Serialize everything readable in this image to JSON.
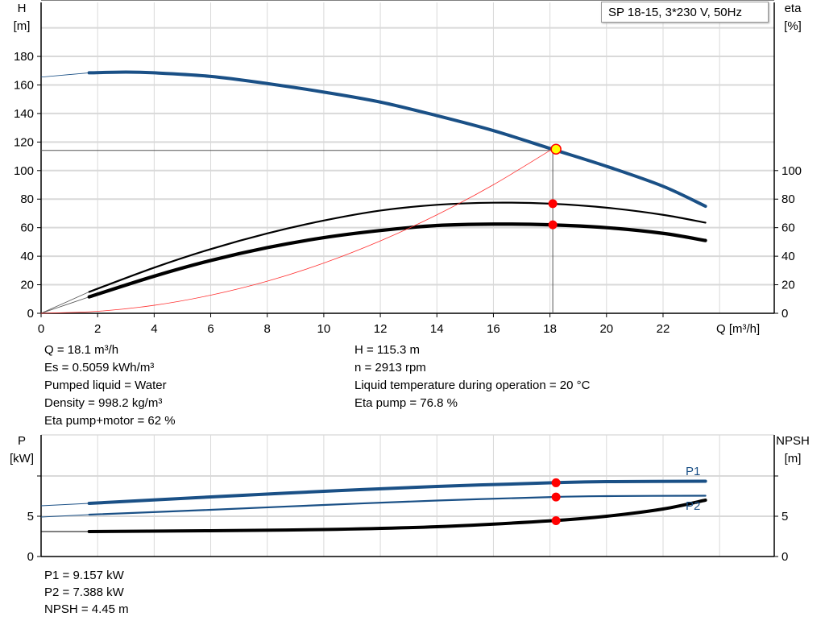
{
  "title": "SP 18-15, 3*230 V, 50Hz",
  "colors": {
    "head": "#1a5086",
    "power": "#1a5086",
    "efficiency": "#000000",
    "system": "#ff3030",
    "marker": "#ff0000",
    "duty_marker": "#ffff00",
    "grid": "#d9d9d9"
  },
  "chart_data": [
    {
      "type": "line",
      "xlabel": "Q [m³/h]",
      "ylabel_left": [
        "H",
        "[m]"
      ],
      "ylabel_right": [
        "eta",
        "[%]"
      ],
      "xlim": [
        0,
        25.5
      ],
      "ylim_left": [
        0,
        200
      ],
      "ylim_right": [
        0,
        200
      ],
      "x_ticks": [
        "0",
        "2",
        "4",
        "6",
        "8",
        "10",
        "12",
        "14",
        "16",
        "18",
        "20",
        "22"
      ],
      "y_ticks_left": [
        "0",
        "20",
        "40",
        "60",
        "80",
        "100",
        "120",
        "140",
        "160",
        "180"
      ],
      "y_ticks_right": [
        "0",
        "20",
        "40",
        "60",
        "80",
        "100"
      ],
      "grid": true,
      "series": [
        {
          "key": "H",
          "axis": "left",
          "x": [
            1.7,
            3,
            4,
            6,
            8,
            10,
            12,
            14,
            16,
            18,
            20,
            22,
            23.5
          ],
          "y": [
            168.5,
            169,
            168.5,
            166,
            161,
            155,
            148,
            138.5,
            128,
            115.5,
            103,
            89,
            75
          ],
          "extrapolated": {
            "x": [
              0,
              1.7
            ],
            "y": [
              165.5,
              168.5
            ]
          }
        },
        {
          "key": "eta_pump",
          "axis": "right",
          "x": [
            1.7,
            4,
            6,
            8,
            10,
            12,
            14,
            16,
            18,
            20,
            22,
            23.5
          ],
          "y": [
            15,
            32,
            45,
            56,
            65,
            72,
            76,
            77.5,
            76.8,
            74,
            69,
            63.5
          ],
          "extrapolated": {
            "x": [
              0,
              1.7
            ],
            "y": [
              0,
              15
            ]
          }
        },
        {
          "key": "eta_total",
          "axis": "right",
          "x": [
            1.7,
            4,
            6,
            8,
            10,
            12,
            14,
            16,
            18,
            20,
            22,
            23.5
          ],
          "y": [
            11.5,
            26,
            37,
            46,
            53,
            58,
            61.5,
            62.5,
            62,
            60,
            56,
            51
          ],
          "extrapolated": {
            "x": [
              0,
              1.7
            ],
            "y": [
              0,
              11.5
            ]
          }
        },
        {
          "key": "system",
          "axis": "left",
          "x": [
            0,
            2,
            4,
            6,
            8,
            10,
            12,
            14,
            16,
            18.1
          ],
          "y": [
            0,
            1.4,
            5.6,
            12.7,
            22.5,
            35.2,
            50.7,
            69,
            90.1,
            115.3
          ]
        }
      ],
      "duty_point": {
        "q": 18.1,
        "h": 115.3,
        "eta_pump": 76.8,
        "eta_total": 62
      }
    },
    {
      "type": "line",
      "ylabel_left": [
        "P",
        "[kW]"
      ],
      "ylabel_right": [
        "NPSH",
        "[m]"
      ],
      "xlim": [
        0,
        25.5
      ],
      "ylim_left": [
        0,
        15
      ],
      "ylim_right": [
        0,
        15
      ],
      "y_ticks_left": [
        "0",
        "5",
        ""
      ],
      "y_ticks_right": [
        "0",
        "5",
        ""
      ],
      "grid": true,
      "series": [
        {
          "key": "P1",
          "name": "P1",
          "axis": "left",
          "x": [
            1.7,
            6,
            10,
            14,
            18.1,
            20,
            23.5
          ],
          "y": [
            6.6,
            7.4,
            8.1,
            8.7,
            9.157,
            9.3,
            9.35
          ],
          "extrapolated": {
            "x": [
              0,
              1.7
            ],
            "y": [
              6.3,
              6.6
            ]
          }
        },
        {
          "key": "P2",
          "name": "P2",
          "axis": "left",
          "x": [
            1.7,
            6,
            10,
            14,
            18.1,
            20,
            23.5
          ],
          "y": [
            5.2,
            5.8,
            6.4,
            6.95,
            7.388,
            7.5,
            7.55
          ],
          "extrapolated": {
            "x": [
              0,
              1.7
            ],
            "y": [
              4.9,
              5.2
            ]
          }
        },
        {
          "key": "NPSH",
          "axis": "right",
          "x": [
            1.7,
            6,
            10,
            14,
            18.1,
            20,
            22,
            23.5
          ],
          "y": [
            3.1,
            3.2,
            3.35,
            3.7,
            4.45,
            5.0,
            5.9,
            7.0
          ],
          "extrapolated": {
            "x": [
              0,
              1.7
            ],
            "y": [
              3.1,
              3.1
            ]
          }
        }
      ],
      "duty_point": {
        "q": 18.1,
        "P1": 9.157,
        "P2": 7.388,
        "NPSH": 4.45
      }
    }
  ],
  "readout_top": {
    "left": [
      "Q = 18.1 m³/h",
      "Es = 0.5059 kWh/m³",
      "Pumped liquid = Water",
      "Density = 998.2 kg/m³",
      "Eta pump+motor = 62 %"
    ],
    "right": [
      "H = 115.3 m",
      "n = 2913 rpm",
      "Liquid temperature during operation = 20 °C",
      "Eta pump = 76.8 %"
    ]
  },
  "readout_bottom": [
    "P1 = 9.157 kW",
    "P2 = 7.388 kW",
    "NPSH = 4.45 m"
  ]
}
